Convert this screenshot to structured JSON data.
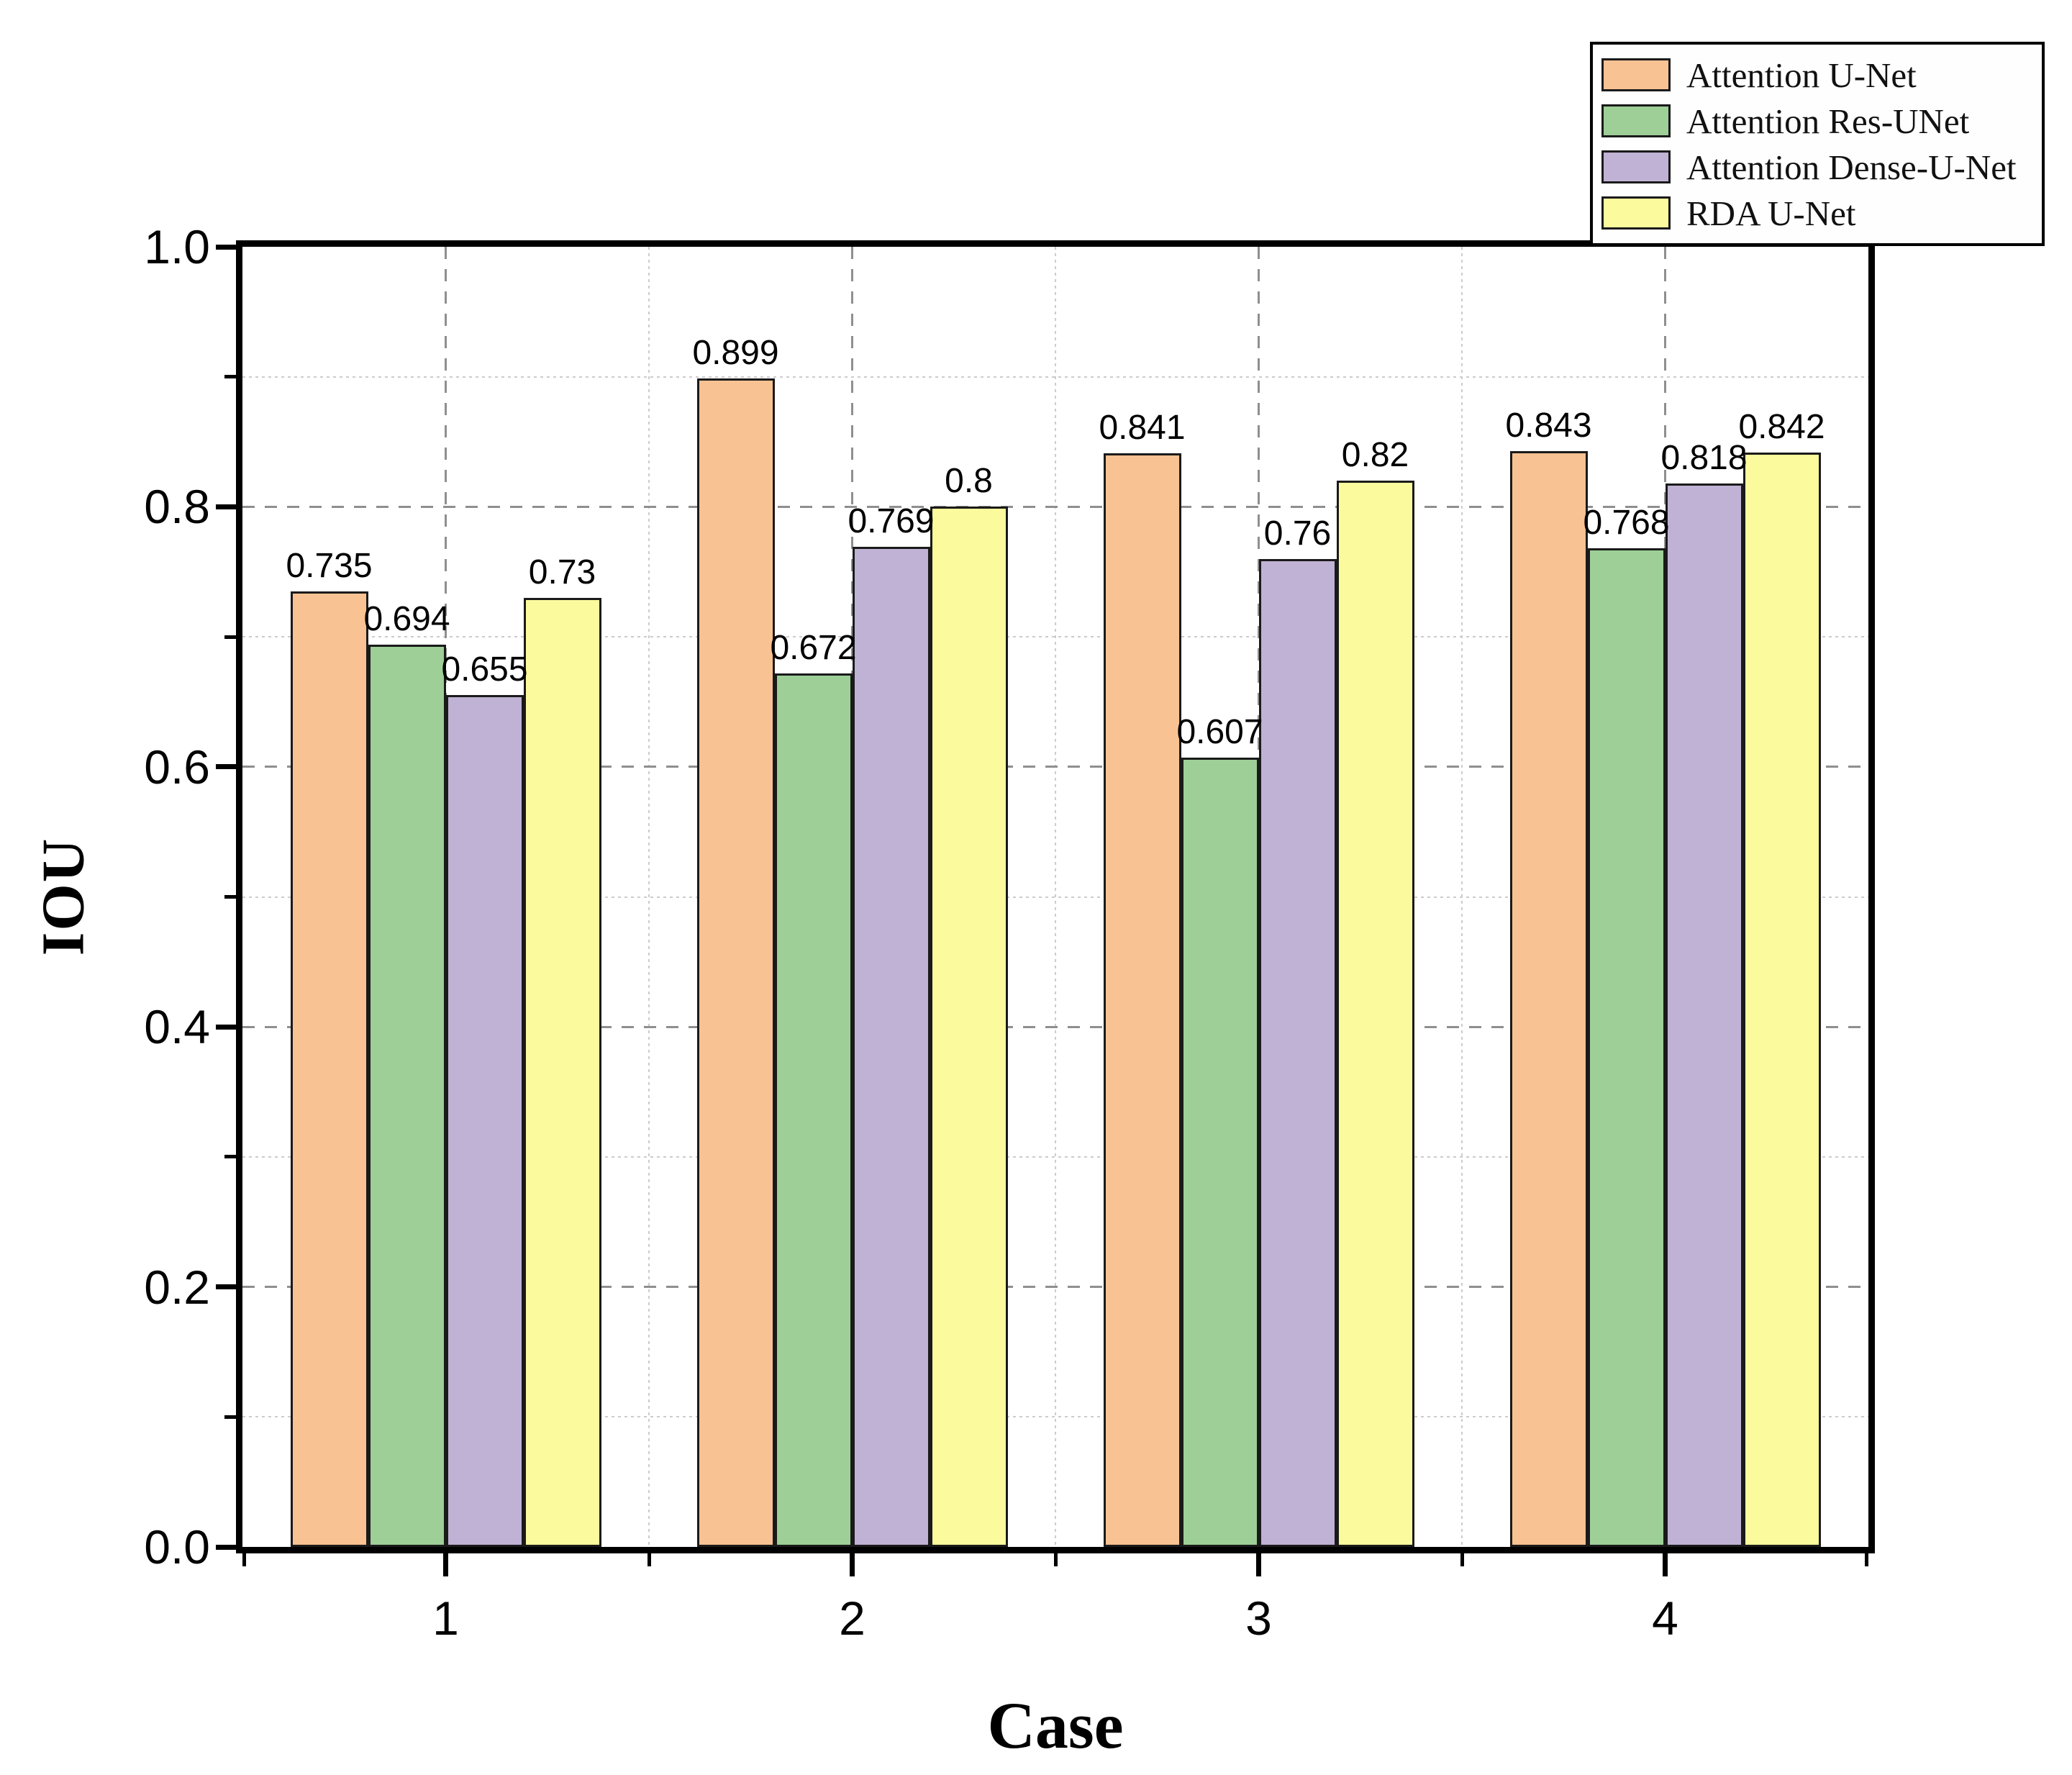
{
  "chart_data": {
    "type": "bar",
    "title": "",
    "xlabel": "Case",
    "ylabel": "IOU",
    "categories": [
      "1",
      "2",
      "3",
      "4"
    ],
    "series": [
      {
        "name": "Attention U-Net",
        "color": "#F9C292",
        "values": [
          0.735,
          0.899,
          0.841,
          0.843
        ],
        "labels": [
          "0.735",
          "0.899",
          "0.841",
          "0.843"
        ]
      },
      {
        "name": "Attention Res-UNet",
        "color": "#9DCF97",
        "values": [
          0.694,
          0.672,
          0.607,
          0.768
        ],
        "labels": [
          "0.694",
          "0.672",
          "0.607",
          "0.768"
        ]
      },
      {
        "name": "Attention Dense-U-Net",
        "color": "#C0B2D5",
        "values": [
          0.655,
          0.769,
          0.76,
          0.818
        ],
        "labels": [
          "0.655",
          "0.769",
          "0.76",
          "0.818"
        ]
      },
      {
        "name": "RDA U-Net",
        "color": "#FBFB9E",
        "values": [
          0.73,
          0.8,
          0.82,
          0.842
        ],
        "labels": [
          "0.73",
          "0.8",
          "0.82",
          "0.842"
        ]
      }
    ],
    "ylim": [
      0.0,
      1.0
    ],
    "ytick_labels": [
      "0.0",
      "0.2",
      "0.4",
      "0.6",
      "0.8",
      "1.0"
    ],
    "ytick_values": [
      0.0,
      0.2,
      0.4,
      0.6,
      0.8,
      1.0
    ],
    "yminor_values": [
      0.1,
      0.3,
      0.5,
      0.7,
      0.9
    ],
    "x_range": [
      0.5,
      4.5
    ],
    "xtick_values": [
      1,
      2,
      3,
      4
    ],
    "xminor_values": [
      0.5,
      1.5,
      2.5,
      3.5,
      4.5
    ],
    "grid": {
      "major_style": "dashed",
      "minor_style": "dotted",
      "major_color": "#8f8f8f",
      "minor_color": "#cccccc"
    },
    "legend_position": "top-right",
    "bar_outline_color": "#1a1a1a",
    "spine_color": "#000000"
  }
}
